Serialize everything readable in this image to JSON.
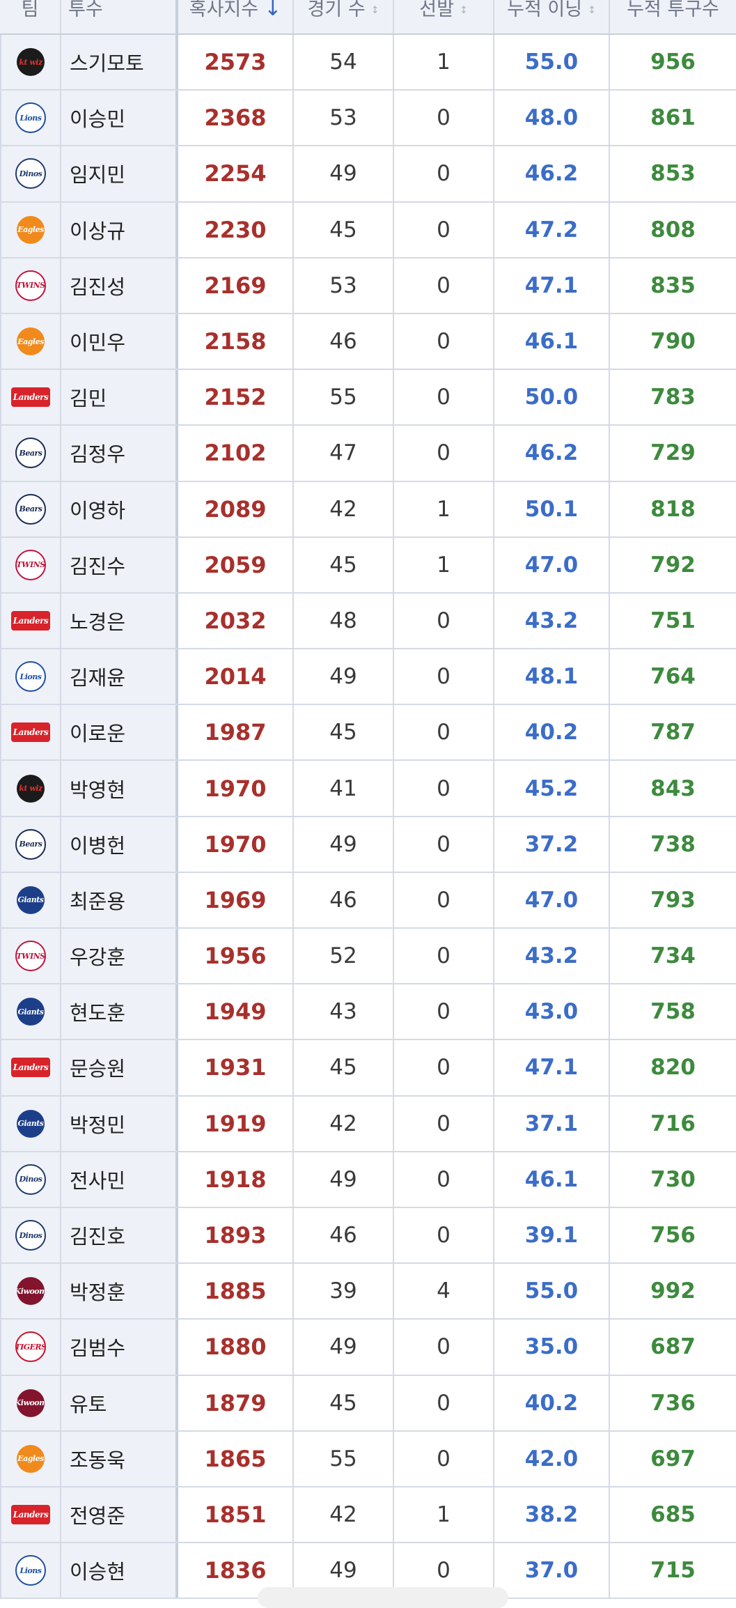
{
  "header": {
    "team": "팀",
    "pitcher": "투수",
    "score": "혹사지수",
    "games": "경기 수",
    "starts": "선발",
    "innings": "누적 이닝",
    "pitches": "누적 투구수",
    "sort_icon": "arrow-down-icon",
    "sortable_icon": "sort-updown-icon"
  },
  "teams": {
    "KT": {
      "label": "kt wiz",
      "bg": "#1b1b1b",
      "fg": "#e03030",
      "shape": "circle"
    },
    "Lions": {
      "label": "Lions",
      "bg": "#ffffff",
      "fg": "#1e4fa0",
      "shape": "circle"
    },
    "Dinos": {
      "label": "Dinos",
      "bg": "#ffffff",
      "fg": "#1f3a6b",
      "shape": "circle"
    },
    "Eagles": {
      "label": "Eagles",
      "bg": "#f08a1c",
      "fg": "#ffffff",
      "shape": "circle"
    },
    "Twins": {
      "label": "TWINS",
      "bg": "#ffffff",
      "fg": "#c0143c",
      "shape": "circle"
    },
    "Landers": {
      "label": "Landers",
      "bg": "#d8232a",
      "fg": "#ffffff",
      "shape": "rect"
    },
    "Bears": {
      "label": "Bears",
      "bg": "#ffffff",
      "fg": "#1b2a55",
      "shape": "circle"
    },
    "Giants": {
      "label": "Giants",
      "bg": "#1d3f8a",
      "fg": "#ffffff",
      "shape": "circle"
    },
    "Kiwoom": {
      "label": "Kiwoom",
      "bg": "#82142e",
      "fg": "#ffffff",
      "shape": "circle"
    },
    "Tigers": {
      "label": "TIGERS",
      "bg": "#ffffff",
      "fg": "#c8102e",
      "shape": "circle"
    }
  },
  "rows": [
    {
      "team": "KT",
      "name": "스기모토",
      "score": "2573",
      "games": "54",
      "starts": "1",
      "innings": "55.0",
      "pitches": "956"
    },
    {
      "team": "Lions",
      "name": "이승민",
      "score": "2368",
      "games": "53",
      "starts": "0",
      "innings": "48.0",
      "pitches": "861"
    },
    {
      "team": "Dinos",
      "name": "임지민",
      "score": "2254",
      "games": "49",
      "starts": "0",
      "innings": "46.2",
      "pitches": "853"
    },
    {
      "team": "Eagles",
      "name": "이상규",
      "score": "2230",
      "games": "45",
      "starts": "0",
      "innings": "47.2",
      "pitches": "808"
    },
    {
      "team": "Twins",
      "name": "김진성",
      "score": "2169",
      "games": "53",
      "starts": "0",
      "innings": "47.1",
      "pitches": "835"
    },
    {
      "team": "Eagles",
      "name": "이민우",
      "score": "2158",
      "games": "46",
      "starts": "0",
      "innings": "46.1",
      "pitches": "790"
    },
    {
      "team": "Landers",
      "name": "김민",
      "score": "2152",
      "games": "55",
      "starts": "0",
      "innings": "50.0",
      "pitches": "783"
    },
    {
      "team": "Bears",
      "name": "김정우",
      "score": "2102",
      "games": "47",
      "starts": "0",
      "innings": "46.2",
      "pitches": "729"
    },
    {
      "team": "Bears",
      "name": "이영하",
      "score": "2089",
      "games": "42",
      "starts": "1",
      "innings": "50.1",
      "pitches": "818"
    },
    {
      "team": "Twins",
      "name": "김진수",
      "score": "2059",
      "games": "45",
      "starts": "1",
      "innings": "47.0",
      "pitches": "792"
    },
    {
      "team": "Landers",
      "name": "노경은",
      "score": "2032",
      "games": "48",
      "starts": "0",
      "innings": "43.2",
      "pitches": "751"
    },
    {
      "team": "Lions",
      "name": "김재윤",
      "score": "2014",
      "games": "49",
      "starts": "0",
      "innings": "48.1",
      "pitches": "764"
    },
    {
      "team": "Landers",
      "name": "이로운",
      "score": "1987",
      "games": "45",
      "starts": "0",
      "innings": "40.2",
      "pitches": "787"
    },
    {
      "team": "KT",
      "name": "박영현",
      "score": "1970",
      "games": "41",
      "starts": "0",
      "innings": "45.2",
      "pitches": "843"
    },
    {
      "team": "Bears",
      "name": "이병헌",
      "score": "1970",
      "games": "49",
      "starts": "0",
      "innings": "37.2",
      "pitches": "738"
    },
    {
      "team": "Giants",
      "name": "최준용",
      "score": "1969",
      "games": "46",
      "starts": "0",
      "innings": "47.0",
      "pitches": "793"
    },
    {
      "team": "Twins",
      "name": "우강훈",
      "score": "1956",
      "games": "52",
      "starts": "0",
      "innings": "43.2",
      "pitches": "734"
    },
    {
      "team": "Giants",
      "name": "현도훈",
      "score": "1949",
      "games": "43",
      "starts": "0",
      "innings": "43.0",
      "pitches": "758"
    },
    {
      "team": "Landers",
      "name": "문승원",
      "score": "1931",
      "games": "45",
      "starts": "0",
      "innings": "47.1",
      "pitches": "820"
    },
    {
      "team": "Giants",
      "name": "박정민",
      "score": "1919",
      "games": "42",
      "starts": "0",
      "innings": "37.1",
      "pitches": "716"
    },
    {
      "team": "Dinos",
      "name": "전사민",
      "score": "1918",
      "games": "49",
      "starts": "0",
      "innings": "46.1",
      "pitches": "730"
    },
    {
      "team": "Dinos",
      "name": "김진호",
      "score": "1893",
      "games": "46",
      "starts": "0",
      "innings": "39.1",
      "pitches": "756"
    },
    {
      "team": "Kiwoom",
      "name": "박정훈",
      "score": "1885",
      "games": "39",
      "starts": "4",
      "innings": "55.0",
      "pitches": "992"
    },
    {
      "team": "Tigers",
      "name": "김범수",
      "score": "1880",
      "games": "49",
      "starts": "0",
      "innings": "35.0",
      "pitches": "687"
    },
    {
      "team": "Kiwoom",
      "name": "유토",
      "score": "1879",
      "games": "45",
      "starts": "0",
      "innings": "40.2",
      "pitches": "736"
    },
    {
      "team": "Eagles",
      "name": "조동욱",
      "score": "1865",
      "games": "55",
      "starts": "0",
      "innings": "42.0",
      "pitches": "697"
    },
    {
      "team": "Landers",
      "name": "전영준",
      "score": "1851",
      "games": "42",
      "starts": "1",
      "innings": "38.2",
      "pitches": "685"
    },
    {
      "team": "Lions",
      "name": "이승현",
      "score": "1836",
      "games": "49",
      "starts": "0",
      "innings": "37.0",
      "pitches": "715"
    }
  ]
}
